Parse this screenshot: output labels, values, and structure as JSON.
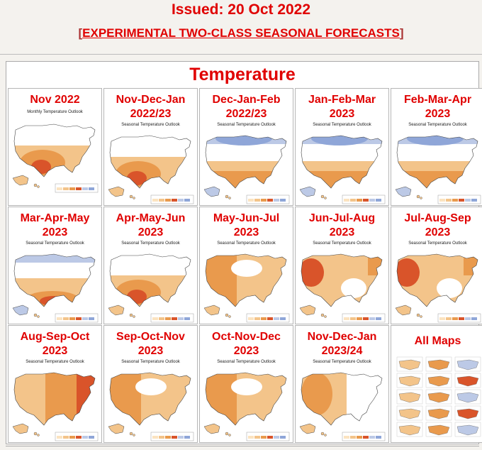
{
  "header": {
    "issued": "Issued: 20 Oct 2022",
    "experimental_link": "EXPERIMENTAL TWO-CLASS SEASONAL FORECASTS",
    "bracket_open": "[",
    "bracket_close": "]"
  },
  "section": {
    "title": "Temperature"
  },
  "maps": [
    {
      "line1": "Nov 2022",
      "line2": "",
      "subtitle": "Monthly Temperature Outlook",
      "palette": "warm-south"
    },
    {
      "line1": "Nov-Dec-Jan",
      "line2": "2022/23",
      "subtitle": "Seasonal Temperature Outlook",
      "palette": "warm-south"
    },
    {
      "line1": "Dec-Jan-Feb",
      "line2": "2022/23",
      "subtitle": "Seasonal Temperature Outlook",
      "palette": "cold-north"
    },
    {
      "line1": "Jan-Feb-Mar",
      "line2": "2023",
      "subtitle": "Seasonal Temperature Outlook",
      "palette": "cold-north"
    },
    {
      "line1": "Feb-Mar-Apr",
      "line2": "2023",
      "subtitle": "Seasonal Temperature Outlook",
      "palette": "cold-north"
    },
    {
      "line1": "Mar-Apr-May",
      "line2": "2023",
      "subtitle": "Seasonal Temperature Outlook",
      "palette": "mixed"
    },
    {
      "line1": "Apr-May-Jun",
      "line2": "2023",
      "subtitle": "Seasonal Temperature Outlook",
      "palette": "warm-south"
    },
    {
      "line1": "May-Jun-Jul",
      "line2": "2023",
      "subtitle": "Seasonal Temperature Outlook",
      "palette": "warm"
    },
    {
      "line1": "Jun-Jul-Aug",
      "line2": "2023",
      "subtitle": "Seasonal Temperature Outlook",
      "palette": "warm-ring"
    },
    {
      "line1": "Jul-Aug-Sep",
      "line2": "2023",
      "subtitle": "Seasonal Temperature Outlook",
      "palette": "warm-ring"
    },
    {
      "line1": "Aug-Sep-Oct",
      "line2": "2023",
      "subtitle": "Seasonal Temperature Outlook",
      "palette": "warm-east"
    },
    {
      "line1": "Sep-Oct-Nov",
      "line2": "2023",
      "subtitle": "Seasonal Temperature Outlook",
      "palette": "warm"
    },
    {
      "line1": "Oct-Nov-Dec",
      "line2": "2023",
      "subtitle": "Seasonal Temperature Outlook",
      "palette": "warm"
    },
    {
      "line1": "Nov-Dec-Jan",
      "line2": "2023/24",
      "subtitle": "Seasonal Temperature Outlook",
      "palette": "warm-west"
    },
    {
      "line1": "All Maps",
      "line2": "",
      "subtitle": "",
      "palette": "thumbs"
    }
  ],
  "colors": {
    "accent": "#e00000",
    "warm_light": "#f3c48a",
    "warm_mid": "#e99a4d",
    "warm_dark": "#d9542a",
    "cold_light": "#bcc9e6",
    "cold_mid": "#8fa6d8",
    "neutral": "#ffffff"
  }
}
